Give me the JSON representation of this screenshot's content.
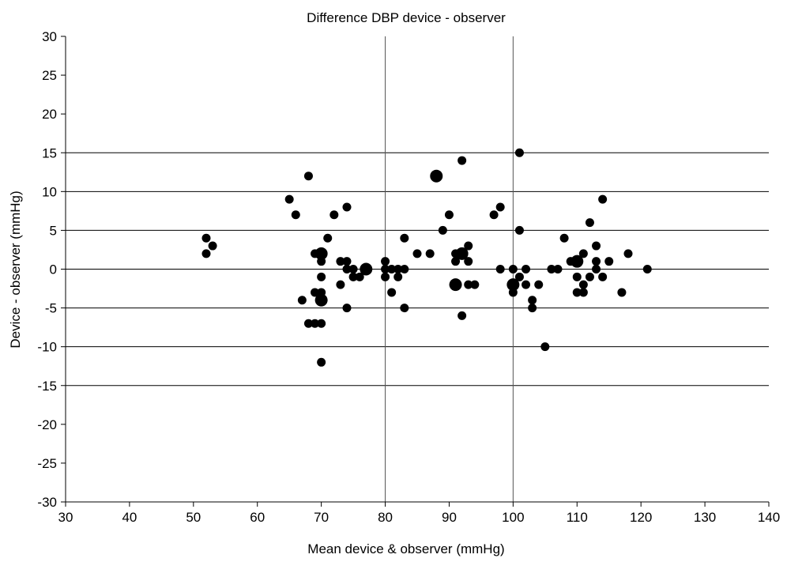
{
  "chart_data": {
    "type": "scatter",
    "title": "Difference DBP device - observer",
    "xlabel": "Mean device & observer (mmHg)",
    "ylabel": "Device - observer (mmHg)",
    "xlim": [
      30,
      140
    ],
    "ylim": [
      -30,
      30
    ],
    "xticks": [
      30,
      40,
      50,
      60,
      70,
      80,
      90,
      100,
      110,
      120,
      130,
      140
    ],
    "yticks": [
      -30,
      -25,
      -20,
      -15,
      -10,
      -5,
      0,
      5,
      10,
      15,
      20,
      25,
      30
    ],
    "horizontal_gridlines": [
      -15,
      -10,
      -5,
      0,
      5,
      10,
      15
    ],
    "vertical_reference_lines": [
      80,
      100
    ],
    "marker_color": "#000000",
    "point_size_note": "larger markers indicate coincident observations",
    "points": [
      {
        "x": 52,
        "y": 4,
        "n": 1
      },
      {
        "x": 52,
        "y": 2,
        "n": 1
      },
      {
        "x": 53,
        "y": 3,
        "n": 1
      },
      {
        "x": 65,
        "y": 9,
        "n": 1
      },
      {
        "x": 66,
        "y": 7,
        "n": 1
      },
      {
        "x": 67,
        "y": -4,
        "n": 1
      },
      {
        "x": 68,
        "y": 12,
        "n": 1
      },
      {
        "x": 68,
        "y": -7,
        "n": 1
      },
      {
        "x": 69,
        "y": 2,
        "n": 1
      },
      {
        "x": 69,
        "y": -3,
        "n": 1
      },
      {
        "x": 69,
        "y": -7,
        "n": 1
      },
      {
        "x": 70,
        "y": 2,
        "n": 2
      },
      {
        "x": 70,
        "y": 1,
        "n": 1
      },
      {
        "x": 70,
        "y": -1,
        "n": 1
      },
      {
        "x": 70,
        "y": -3,
        "n": 1
      },
      {
        "x": 70,
        "y": -4,
        "n": 2
      },
      {
        "x": 70,
        "y": -7,
        "n": 1
      },
      {
        "x": 70,
        "y": -12,
        "n": 1
      },
      {
        "x": 71,
        "y": 4,
        "n": 1
      },
      {
        "x": 72,
        "y": 7,
        "n": 1
      },
      {
        "x": 73,
        "y": 1,
        "n": 1
      },
      {
        "x": 73,
        "y": -2,
        "n": 1
      },
      {
        "x": 74,
        "y": 8,
        "n": 1
      },
      {
        "x": 74,
        "y": 1,
        "n": 1
      },
      {
        "x": 74,
        "y": 0,
        "n": 1
      },
      {
        "x": 74,
        "y": -5,
        "n": 1
      },
      {
        "x": 75,
        "y": 0,
        "n": 1
      },
      {
        "x": 75,
        "y": -1,
        "n": 1
      },
      {
        "x": 76,
        "y": -1,
        "n": 1
      },
      {
        "x": 77,
        "y": 0,
        "n": 2
      },
      {
        "x": 80,
        "y": 1,
        "n": 1
      },
      {
        "x": 80,
        "y": 0,
        "n": 1
      },
      {
        "x": 80,
        "y": -1,
        "n": 1
      },
      {
        "x": 81,
        "y": 0,
        "n": 1
      },
      {
        "x": 81,
        "y": -3,
        "n": 1
      },
      {
        "x": 82,
        "y": 0,
        "n": 1
      },
      {
        "x": 82,
        "y": -1,
        "n": 1
      },
      {
        "x": 83,
        "y": 4,
        "n": 1
      },
      {
        "x": 83,
        "y": 0,
        "n": 1
      },
      {
        "x": 83,
        "y": -5,
        "n": 1
      },
      {
        "x": 85,
        "y": 2,
        "n": 1
      },
      {
        "x": 87,
        "y": 2,
        "n": 1
      },
      {
        "x": 88,
        "y": 12,
        "n": 2
      },
      {
        "x": 89,
        "y": 5,
        "n": 1
      },
      {
        "x": 90,
        "y": 7,
        "n": 1
      },
      {
        "x": 91,
        "y": 2,
        "n": 1
      },
      {
        "x": 91,
        "y": 1,
        "n": 1
      },
      {
        "x": 91,
        "y": -2,
        "n": 2
      },
      {
        "x": 92,
        "y": 14,
        "n": 1
      },
      {
        "x": 92,
        "y": 2,
        "n": 2
      },
      {
        "x": 92,
        "y": -6,
        "n": 1
      },
      {
        "x": 93,
        "y": 3,
        "n": 1
      },
      {
        "x": 93,
        "y": 1,
        "n": 1
      },
      {
        "x": 93,
        "y": -2,
        "n": 1
      },
      {
        "x": 94,
        "y": -2,
        "n": 1
      },
      {
        "x": 97,
        "y": 7,
        "n": 1
      },
      {
        "x": 98,
        "y": 8,
        "n": 1
      },
      {
        "x": 98,
        "y": 0,
        "n": 1
      },
      {
        "x": 100,
        "y": 0,
        "n": 1
      },
      {
        "x": 100,
        "y": -2,
        "n": 2
      },
      {
        "x": 100,
        "y": -3,
        "n": 1
      },
      {
        "x": 101,
        "y": 15,
        "n": 1
      },
      {
        "x": 101,
        "y": 5,
        "n": 1
      },
      {
        "x": 101,
        "y": -1,
        "n": 1
      },
      {
        "x": 102,
        "y": 0,
        "n": 1
      },
      {
        "x": 102,
        "y": -2,
        "n": 1
      },
      {
        "x": 103,
        "y": -4,
        "n": 1
      },
      {
        "x": 103,
        "y": -5,
        "n": 1
      },
      {
        "x": 104,
        "y": -2,
        "n": 1
      },
      {
        "x": 105,
        "y": -10,
        "n": 1
      },
      {
        "x": 106,
        "y": 0,
        "n": 1
      },
      {
        "x": 107,
        "y": 0,
        "n": 1
      },
      {
        "x": 108,
        "y": 4,
        "n": 1
      },
      {
        "x": 109,
        "y": 1,
        "n": 1
      },
      {
        "x": 110,
        "y": 1,
        "n": 2
      },
      {
        "x": 110,
        "y": -1,
        "n": 1
      },
      {
        "x": 110,
        "y": -3,
        "n": 1
      },
      {
        "x": 111,
        "y": 2,
        "n": 1
      },
      {
        "x": 111,
        "y": -2,
        "n": 1
      },
      {
        "x": 111,
        "y": -3,
        "n": 1
      },
      {
        "x": 112,
        "y": 6,
        "n": 1
      },
      {
        "x": 112,
        "y": -1,
        "n": 1
      },
      {
        "x": 113,
        "y": 3,
        "n": 1
      },
      {
        "x": 113,
        "y": 1,
        "n": 1
      },
      {
        "x": 113,
        "y": 0,
        "n": 1
      },
      {
        "x": 114,
        "y": 9,
        "n": 1
      },
      {
        "x": 114,
        "y": -1,
        "n": 1
      },
      {
        "x": 115,
        "y": 1,
        "n": 1
      },
      {
        "x": 117,
        "y": -3,
        "n": 1
      },
      {
        "x": 118,
        "y": 2,
        "n": 1
      },
      {
        "x": 121,
        "y": 0,
        "n": 1
      }
    ]
  }
}
